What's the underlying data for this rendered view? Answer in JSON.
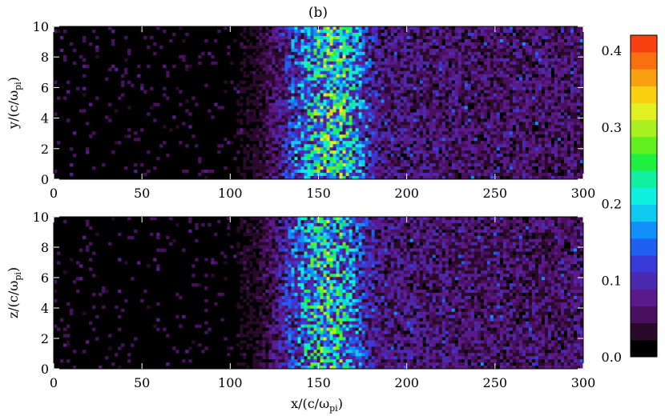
{
  "chart_data": {
    "type": "heatmap",
    "panel_label": "(b)",
    "panels": [
      {
        "name": "y-panel",
        "ylabel": "y/(c/ωpi)",
        "ylabel_main": "y/(c/ω",
        "ylabel_sub": "pi",
        "ylabel_end": ")",
        "xlim": [
          0,
          300
        ],
        "ylim": [
          0,
          10
        ],
        "xticks": [
          "0",
          "50",
          "100",
          "150",
          "200",
          "250",
          "300"
        ],
        "yticks": [
          "0",
          "2",
          "4",
          "6",
          "8",
          "10"
        ],
        "intensity_profile": [
          {
            "x": 0,
            "v": 0.0
          },
          {
            "x": 100,
            "v": 0.01
          },
          {
            "x": 115,
            "v": 0.03
          },
          {
            "x": 125,
            "v": 0.06
          },
          {
            "x": 135,
            "v": 0.12
          },
          {
            "x": 145,
            "v": 0.17
          },
          {
            "x": 155,
            "v": 0.22
          },
          {
            "x": 165,
            "v": 0.2
          },
          {
            "x": 175,
            "v": 0.13
          },
          {
            "x": 185,
            "v": 0.07
          },
          {
            "x": 250,
            "v": 0.06
          },
          {
            "x": 300,
            "v": 0.06
          }
        ]
      },
      {
        "name": "z-panel",
        "ylabel": "z/(c/ωpi)",
        "ylabel_main": "z/(c/ω",
        "ylabel_sub": "pi",
        "ylabel_end": ")",
        "xlabel": "x/(c/ωpi)",
        "xlabel_main": "x/(c/ω",
        "xlabel_sub": "pi",
        "xlabel_end": ")",
        "xlim": [
          0,
          300
        ],
        "ylim": [
          0,
          10
        ],
        "xticks": [
          "0",
          "50",
          "100",
          "150",
          "200",
          "250",
          "300"
        ],
        "yticks": [
          "0",
          "2",
          "4",
          "6",
          "8",
          "10"
        ],
        "intensity_profile": [
          {
            "x": 0,
            "v": 0.0
          },
          {
            "x": 100,
            "v": 0.01
          },
          {
            "x": 115,
            "v": 0.03
          },
          {
            "x": 125,
            "v": 0.06
          },
          {
            "x": 135,
            "v": 0.12
          },
          {
            "x": 145,
            "v": 0.17
          },
          {
            "x": 155,
            "v": 0.21
          },
          {
            "x": 165,
            "v": 0.18
          },
          {
            "x": 175,
            "v": 0.11
          },
          {
            "x": 185,
            "v": 0.07
          },
          {
            "x": 250,
            "v": 0.06
          },
          {
            "x": 300,
            "v": 0.06
          }
        ]
      }
    ],
    "colorbar": {
      "range": [
        0.0,
        0.42
      ],
      "ticks": [
        "0.0",
        "0.1",
        "0.2",
        "0.3",
        "0.4"
      ],
      "tick_values": [
        0.0,
        0.1,
        0.2,
        0.3,
        0.4
      ],
      "colormap": "rainbow",
      "colors": [
        "#000000",
        "#2a0a2a",
        "#4a1060",
        "#5a1a8a",
        "#4b2ab0",
        "#3a3ad8",
        "#2060f0",
        "#1090f8",
        "#10c8f0",
        "#10f0e0",
        "#10f0a0",
        "#20f040",
        "#60f020",
        "#a8f020",
        "#e0f020",
        "#f8d010",
        "#f8a010",
        "#f87010",
        "#f84010"
      ]
    }
  }
}
